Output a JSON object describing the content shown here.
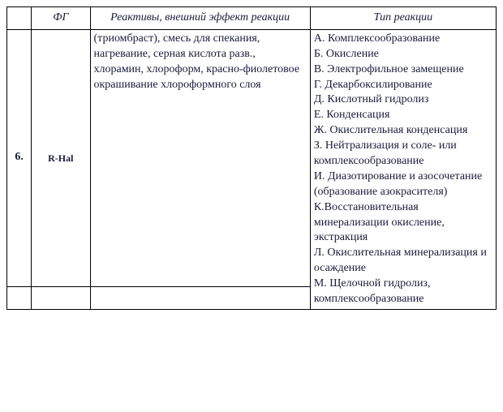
{
  "header": {
    "num": "",
    "fg": "ФГ",
    "react": "Реактивы, внешний эффект реакции",
    "type": "Тип реакции"
  },
  "row": {
    "num": "6.",
    "fg": "R-Hal",
    "react": "(триомбраст), смесь для спекания, нагревание, серная кислота разв., хлорамин, хлороформ, красно-фиолетовое окрашивание хлороформного слоя",
    "types": {
      "a": "А. Комплексообразование",
      "b": "Б. Окисление",
      "v": "В. Электрофильное замещение",
      "g": "Г. Декарбоксилирование",
      "d": "Д. Кислотный гидролиз",
      "e": "Е. Конденсация",
      "zh": "Ж. Окислительная конденсация",
      "z": "З. Нейтрализация и соле- или комплексообразование",
      "i": "И. Диазотирование и азосочетание (образование азокрасителя)",
      "k": "К.Восстановительная минерализации окисление, экстракция",
      "l": "Л. Окислительная минерализация и осаждение",
      "m": "М. Щелочной гидролиз, комплексообразование"
    }
  }
}
